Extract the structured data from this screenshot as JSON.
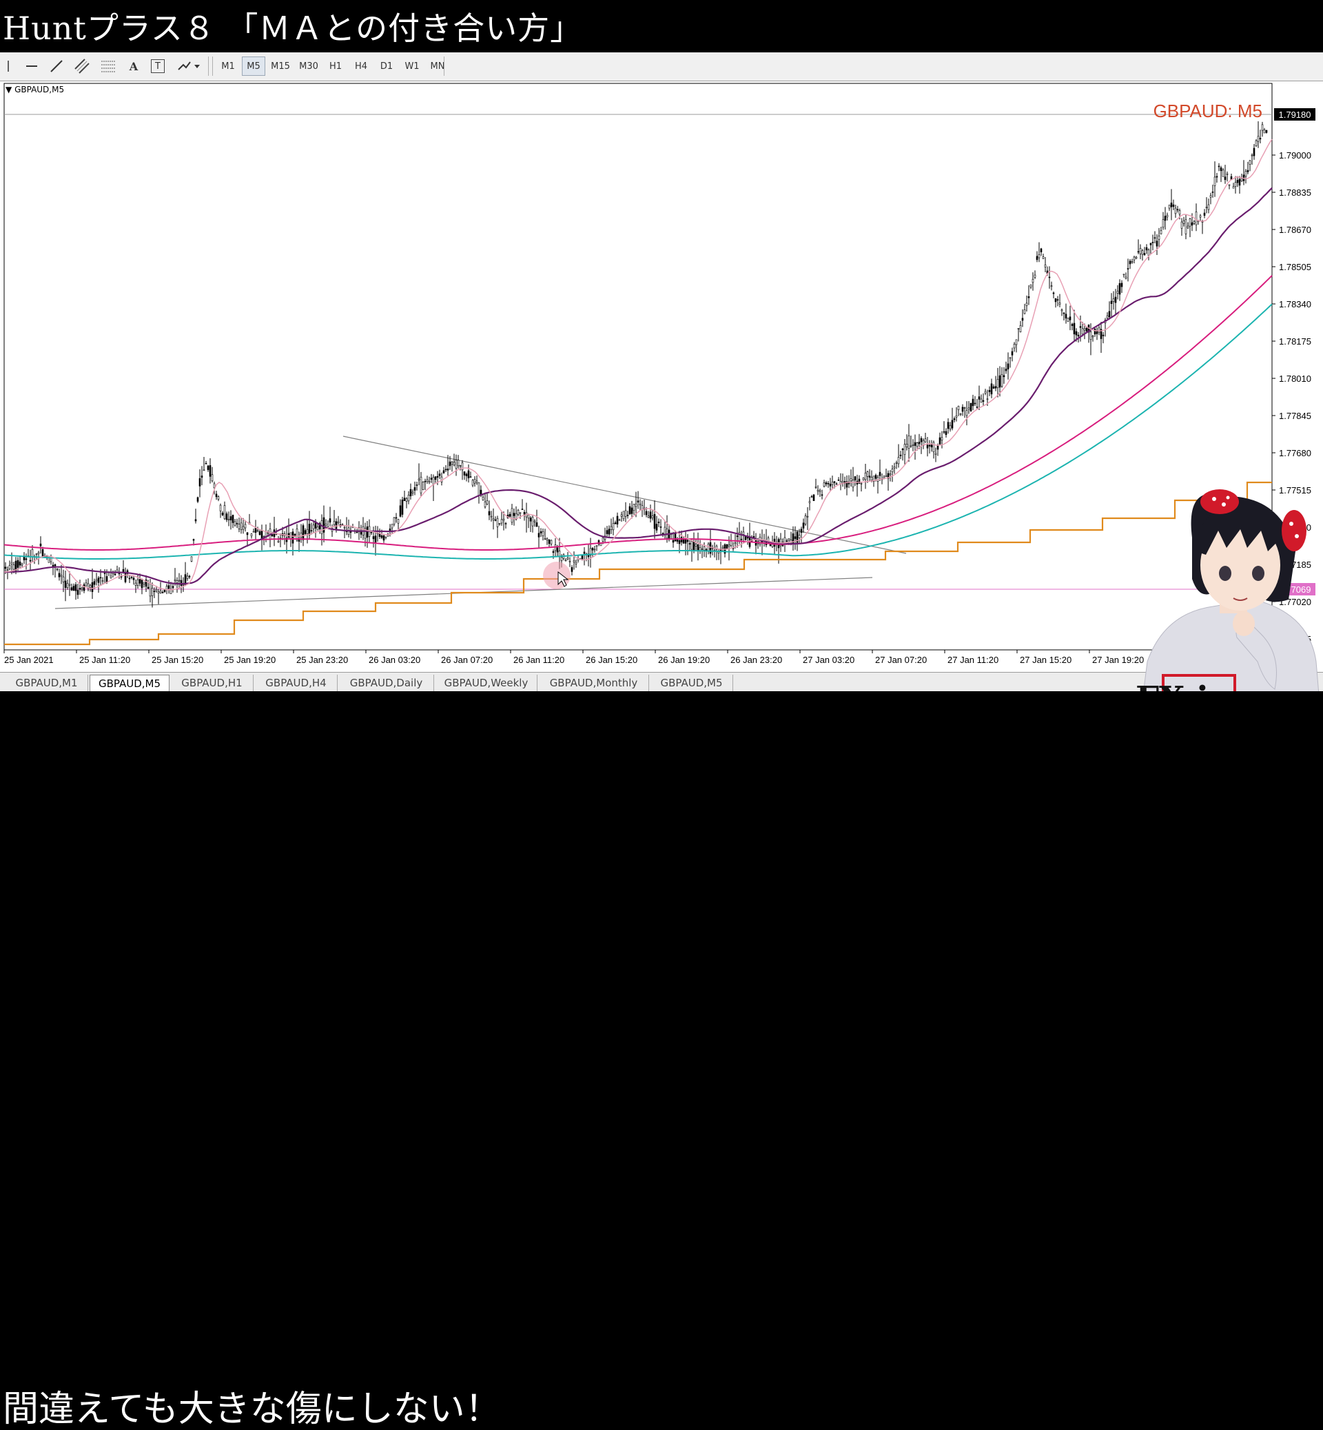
{
  "video": {
    "title": "Huntプラス８ 「ＭＡとの付き合い方」",
    "caption": "間違えても大きな傷にしない！"
  },
  "toolbar": {
    "timeframes": [
      "M1",
      "M5",
      "M15",
      "M30",
      "H1",
      "H4",
      "D1",
      "W1",
      "MN"
    ],
    "active_timeframe": "M5",
    "tool_icons": [
      "cursor-icon",
      "horizontal-line-icon",
      "trend-line-icon",
      "equidistant-channel-icon",
      "fibonacci-icon",
      "text-icon",
      "text-label-icon",
      "arrows-icon"
    ],
    "text_tool_label": "A",
    "label_tool_label": "T"
  },
  "chart": {
    "symbol_label": "GBPAUD,M5",
    "watermark": "GBPAUD: M5",
    "current_price": "1.79180",
    "marked_level": "1.77069",
    "price_axis": [
      "1.79000",
      "1.78835",
      "1.78670",
      "1.78505",
      "1.78340",
      "1.78175",
      "1.78010",
      "1.77845",
      "1.77680",
      "1.77515",
      "1.77350",
      "1.77185",
      "1.77020",
      "1.76855"
    ],
    "time_axis": [
      "25 Jan 2021",
      "25 Jan 11:20",
      "25 Jan 15:20",
      "25 Jan 19:20",
      "25 Jan 23:20",
      "26 Jan 03:20",
      "26 Jan 07:20",
      "26 Jan 11:20",
      "26 Jan 15:20",
      "26 Jan 19:20",
      "26 Jan 23:20",
      "27 Jan 03:20",
      "27 Jan 07:20",
      "27 Jan 11:20",
      "27 Jan 15:20",
      "27 Jan 19:20"
    ],
    "colors": {
      "candle": "#000000",
      "ma_fast": "#e8a0b4",
      "ma_mid": "#6a1e6e",
      "ma_slow": "#d81e7e",
      "ma_slowest": "#1cb4b0",
      "step_line": "#e08a1c",
      "watermark": "#d2492a"
    }
  },
  "tabs": [
    "GBPAUD,M1",
    "GBPAUD,M5",
    "GBPAUD,H1",
    "GBPAUD,H4",
    "GBPAUD,Daily",
    "GBPAUD,Weekly",
    "GBPAUD,Monthly",
    "GBPAUD,M5"
  ],
  "active_tab_index": 1,
  "avatar": {
    "shirt_logo": "FX ism"
  }
}
